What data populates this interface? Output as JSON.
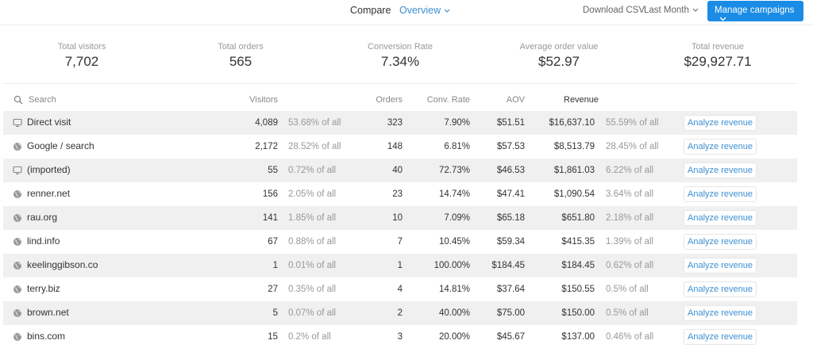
{
  "topbar": {
    "compare": "Compare",
    "overview": "Overview",
    "download": "Download CSV",
    "period": "Last Month",
    "manage": "Manage campaigns"
  },
  "summary": [
    {
      "label": "Total visitors",
      "value": "7,702"
    },
    {
      "label": "Total orders",
      "value": "565"
    },
    {
      "label": "Conversion Rate",
      "value": "7.34%"
    },
    {
      "label": "Average order value",
      "value": "$52.97"
    },
    {
      "label": "Total revenue",
      "value": "$29,927.71"
    }
  ],
  "table": {
    "search_placeholder": "Search",
    "headers": {
      "visitors": "Visitors",
      "orders": "Orders",
      "conv": "Conv. Rate",
      "aov": "AOV",
      "revenue": "Revenue"
    },
    "action_label": "Analyze revenue",
    "rows": [
      {
        "icon": "desktop-icon",
        "source": "Direct visit",
        "visitors": "4,089",
        "visitors_pct": "53.68% of all",
        "orders": "323",
        "conv": "7.90%",
        "aov": "$51.51",
        "revenue": "$16,637.10",
        "revenue_pct": "55.59% of all"
      },
      {
        "icon": "globe-icon",
        "source": "Google / search",
        "visitors": "2,172",
        "visitors_pct": "28.52% of all",
        "orders": "148",
        "conv": "6.81%",
        "aov": "$57.53",
        "revenue": "$8,513.79",
        "revenue_pct": "28.45% of all"
      },
      {
        "icon": "desktop-icon",
        "source": "(imported)",
        "visitors": "55",
        "visitors_pct": "0.72% of all",
        "orders": "40",
        "conv": "72.73%",
        "aov": "$46.53",
        "revenue": "$1,861.03",
        "revenue_pct": "6.22% of all"
      },
      {
        "icon": "globe-icon",
        "source": "renner.net",
        "visitors": "156",
        "visitors_pct": "2.05% of all",
        "orders": "23",
        "conv": "14.74%",
        "aov": "$47.41",
        "revenue": "$1,090.54",
        "revenue_pct": "3.64% of all"
      },
      {
        "icon": "globe-icon",
        "source": "rau.org",
        "visitors": "141",
        "visitors_pct": "1.85% of all",
        "orders": "10",
        "conv": "7.09%",
        "aov": "$65.18",
        "revenue": "$651.80",
        "revenue_pct": "2.18% of all"
      },
      {
        "icon": "globe-icon",
        "source": "lind.info",
        "visitors": "67",
        "visitors_pct": "0.88% of all",
        "orders": "7",
        "conv": "10.45%",
        "aov": "$59.34",
        "revenue": "$415.35",
        "revenue_pct": "1.39% of all"
      },
      {
        "icon": "globe-icon",
        "source": "keelinggibson.co",
        "visitors": "1",
        "visitors_pct": "0.01% of all",
        "orders": "1",
        "conv": "100.00%",
        "aov": "$184.45",
        "revenue": "$184.45",
        "revenue_pct": "0.62% of all"
      },
      {
        "icon": "globe-icon",
        "source": "terry.biz",
        "visitors": "27",
        "visitors_pct": "0.35% of all",
        "orders": "4",
        "conv": "14.81%",
        "aov": "$37.64",
        "revenue": "$150.55",
        "revenue_pct": "0.5% of all"
      },
      {
        "icon": "globe-icon",
        "source": "brown.net",
        "visitors": "5",
        "visitors_pct": "0.07% of all",
        "orders": "2",
        "conv": "40.00%",
        "aov": "$75.00",
        "revenue": "$150.00",
        "revenue_pct": "0.5% of all"
      },
      {
        "icon": "globe-icon",
        "source": "bins.com",
        "visitors": "15",
        "visitors_pct": "0.2% of all",
        "orders": "3",
        "conv": "20.00%",
        "aov": "$45.67",
        "revenue": "$137.00",
        "revenue_pct": "0.46% of all"
      }
    ]
  },
  "colors": {
    "accent": "#1a8ce6",
    "link": "#3d8fd1",
    "row_shade": "#f0f0f0"
  }
}
